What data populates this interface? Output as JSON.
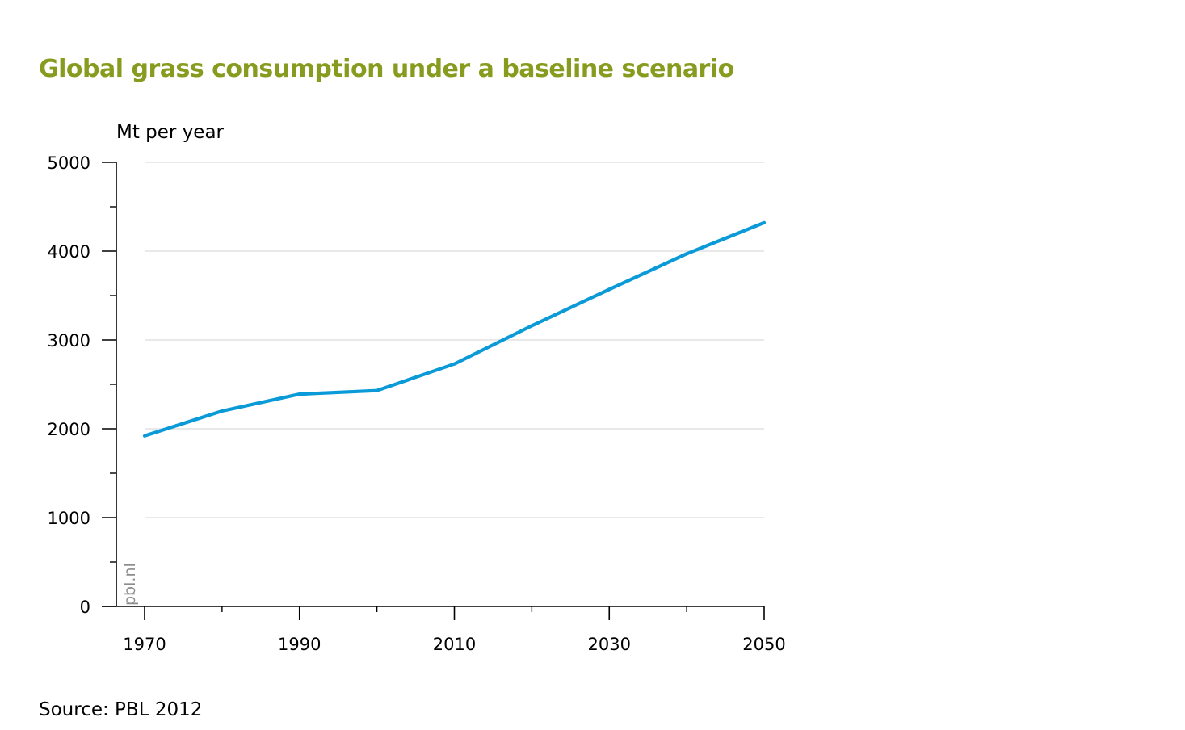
{
  "title": "Global grass consumption under a baseline scenario",
  "y_unit": "Mt per year",
  "source": "Source: PBL 2012",
  "watermark": "pbl.nl",
  "colors": {
    "title": "#879c1e",
    "series": "#0a9ad8",
    "grid": "#dcdcdc",
    "axis": "#000000",
    "watermark": "#8c8c8c"
  },
  "chart_data": {
    "type": "line",
    "title": "Global grass consumption under a baseline scenario",
    "xlabel": "",
    "ylabel": "Mt per year",
    "xlim": [
      1970,
      2050
    ],
    "ylim": [
      0,
      5000
    ],
    "grid": true,
    "x_ticks": [
      1970,
      1990,
      2010,
      2030,
      2050
    ],
    "x_minor_ticks": [
      1980,
      2000,
      2020,
      2040
    ],
    "y_ticks": [
      0,
      1000,
      2000,
      3000,
      4000,
      5000
    ],
    "y_minor_ticks": [
      500,
      1500,
      2500,
      3500,
      4500
    ],
    "x": [
      1970,
      1980,
      1990,
      2000,
      2010,
      2020,
      2030,
      2040,
      2050
    ],
    "series": [
      {
        "values": [
          1920,
          2200,
          2390,
          2430,
          2730,
          3160,
          3570,
          3970,
          4320
        ]
      }
    ]
  }
}
